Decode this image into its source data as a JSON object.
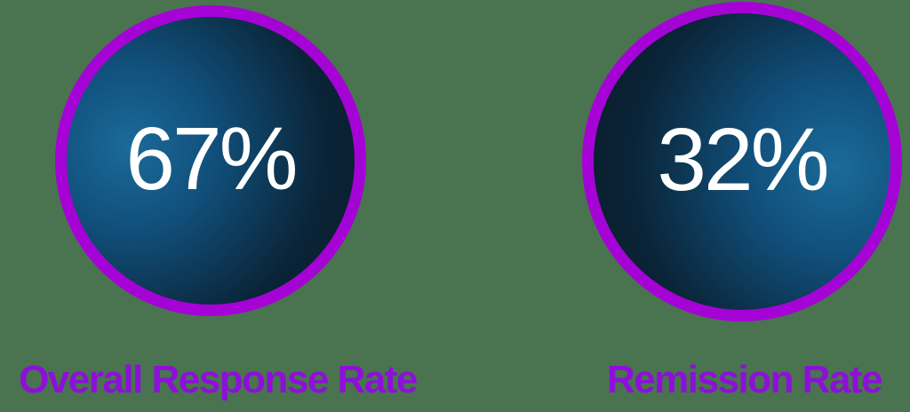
{
  "colors": {
    "bg": "#4a7350",
    "ring": "#a503d6",
    "label": "#8d10d9",
    "value": "#ffffff",
    "circle-light": "#1b6a99",
    "circle-mid": "#11507c",
    "circle-dark": "#0a2336",
    "circle-edge": "#0a1d2b"
  },
  "stats": [
    {
      "value": "67%",
      "label": "Overall Response Rate"
    },
    {
      "value": "32%",
      "label": "Remission Rate"
    }
  ],
  "chart_data": {
    "type": "table",
    "title": "",
    "categories": [
      "Overall Response Rate",
      "Remission Rate"
    ],
    "values": [
      67,
      32
    ],
    "units": "percent",
    "notes": "Two KPI stat circles: purple ring, dark blue gradient fill, white percentage value, purple label beneath each circle"
  }
}
